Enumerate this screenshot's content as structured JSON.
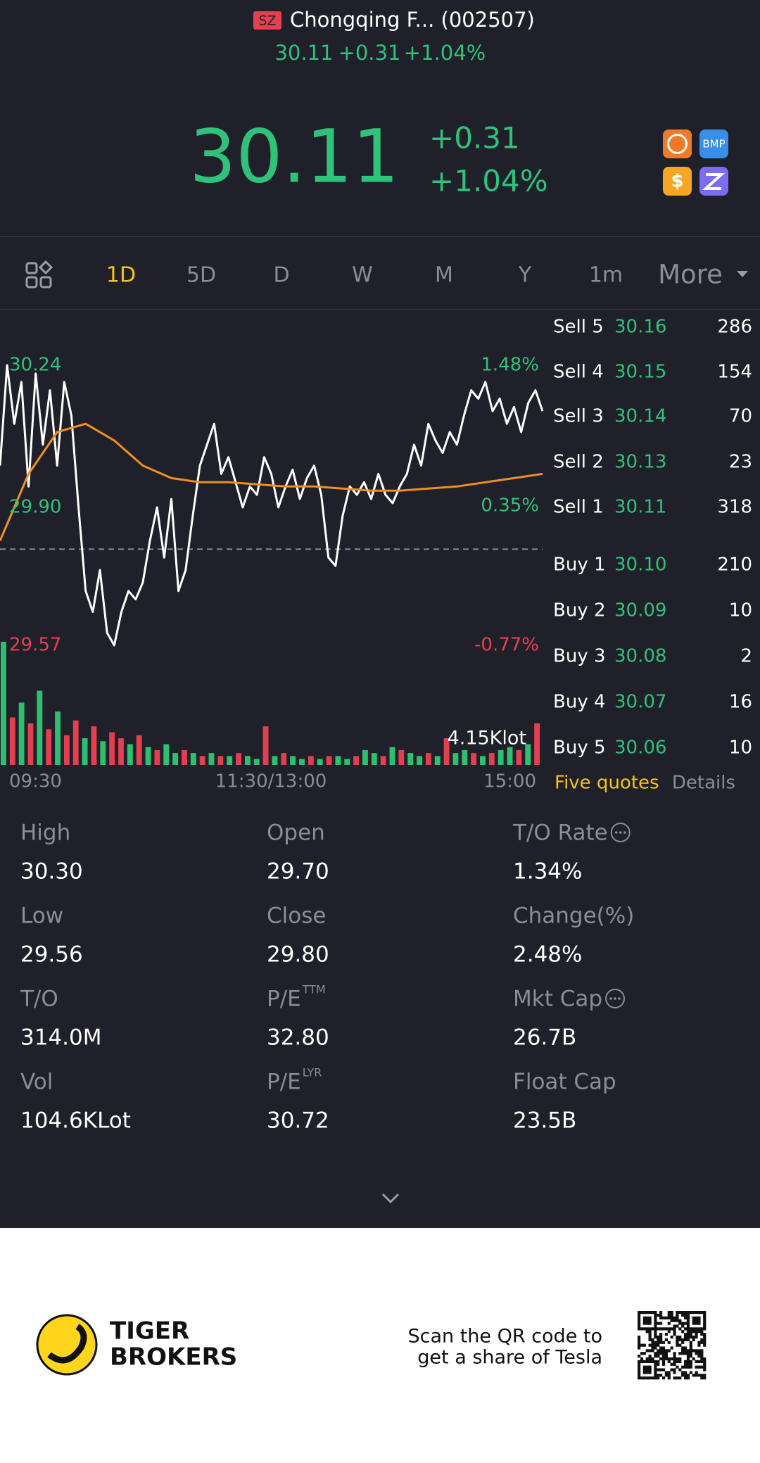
{
  "header": {
    "exchange": "SZ",
    "name": "Chongqing F... (002507)",
    "price": "30.11",
    "change": "+0.31",
    "change_pct": "+1.04%"
  },
  "quote": {
    "price": "30.11",
    "change": "+0.31",
    "change_pct": "+1.04%",
    "icons": [
      "BMP",
      "$"
    ]
  },
  "tabs": [
    "1D",
    "5D",
    "D",
    "W",
    "M",
    "Y",
    "1m",
    "More"
  ],
  "chart_data": {
    "type": "line",
    "ylim": [
      29.57,
      30.24
    ],
    "yticks": [
      30.24,
      {
        "value": 29.9,
        "label": "29.90"
      },
      29.57
    ],
    "y2lim": [
      -0.77,
      1.48
    ],
    "y2ticks": [
      {
        "value": 1.48,
        "label": "1.48%"
      },
      {
        "value": 0.35,
        "label": "0.35%"
      },
      {
        "value": -0.77,
        "label": "-0.77%"
      }
    ],
    "reference_line": 29.8,
    "x_labels": [
      "09:30",
      "11:30/13:00",
      "15:00"
    ],
    "series": [
      {
        "color": "#ffffff",
        "values": [
          30.0,
          30.24,
          30.1,
          30.2,
          29.95,
          30.22,
          30.05,
          30.18,
          30.0,
          30.2,
          30.12,
          29.9,
          29.7,
          29.65,
          29.75,
          29.6,
          29.57,
          29.65,
          29.7,
          29.68,
          29.72,
          29.82,
          29.9,
          29.78,
          29.92,
          29.7,
          29.75,
          29.88,
          30.0,
          30.05,
          30.1,
          29.98,
          30.02,
          29.96,
          29.9,
          29.95,
          29.93,
          30.02,
          29.98,
          29.9,
          29.95,
          29.99,
          29.92,
          29.97,
          30.0,
          29.93,
          29.78,
          29.76,
          29.88,
          29.95,
          29.93,
          29.96,
          29.92,
          29.98,
          29.93,
          29.91,
          29.95,
          29.98,
          30.05,
          30.0,
          30.1,
          30.06,
          30.03,
          30.08,
          30.05,
          30.12,
          30.18,
          30.16,
          30.2,
          30.13,
          30.16,
          30.1,
          30.14,
          30.08,
          30.15,
          30.18,
          30.13
        ]
      },
      {
        "color": "#f0901e",
        "values": [
          29.82,
          29.98,
          30.08,
          30.1,
          30.06,
          30.0,
          29.97,
          29.96,
          29.96,
          29.955,
          29.95,
          29.95,
          29.945,
          29.94,
          29.94,
          29.945,
          29.95,
          29.96,
          29.97,
          29.98
        ]
      }
    ],
    "volume": {
      "ticks": [
        {
          "value": 4.15,
          "label": "4.15Klot"
        }
      ],
      "up_color": "#2fbf71",
      "down_color": "#e0404f",
      "values": [
        4.15,
        1.6,
        2.1,
        1.4,
        2.5,
        1.2,
        1.8,
        1.0,
        1.5,
        0.9,
        1.3,
        0.8,
        1.1,
        0.9,
        0.7,
        1.0,
        0.6,
        0.5,
        0.7,
        0.4,
        0.5,
        0.4,
        0.3,
        0.4,
        0.3,
        0.3,
        0.4,
        0.3,
        0.2,
        1.3,
        0.3,
        0.4,
        0.3,
        0.2,
        0.3,
        0.2,
        0.3,
        0.3,
        0.2,
        0.3,
        0.5,
        0.4,
        0.3,
        0.6,
        0.5,
        0.4,
        0.3,
        0.4,
        0.3,
        0.9,
        0.4,
        0.5,
        0.4,
        0.3,
        0.4,
        0.5,
        0.6,
        0.5,
        0.7,
        1.4
      ],
      "up": [
        true,
        false,
        true,
        false,
        true,
        false,
        true,
        false,
        false,
        true,
        false,
        true,
        false,
        false,
        true,
        false,
        true,
        false,
        true,
        true,
        false,
        true,
        false,
        true,
        false,
        true,
        false,
        true,
        true,
        false,
        true,
        false,
        true,
        true,
        false,
        true,
        false,
        true,
        true,
        false,
        true,
        true,
        false,
        true,
        false,
        true,
        true,
        false,
        true,
        false,
        true,
        true,
        false,
        true,
        false,
        true,
        true,
        false,
        true,
        false
      ]
    }
  },
  "order_book": {
    "asks": [
      {
        "label": "Sell 5",
        "price": "30.16",
        "qty": "286"
      },
      {
        "label": "Sell 4",
        "price": "30.15",
        "qty": "154"
      },
      {
        "label": "Sell 3",
        "price": "30.14",
        "qty": "70"
      },
      {
        "label": "Sell 2",
        "price": "30.13",
        "qty": "23"
      },
      {
        "label": "Sell 1",
        "price": "30.11",
        "qty": "318"
      }
    ],
    "bids": [
      {
        "label": "Buy 1",
        "price": "30.10",
        "qty": "210"
      },
      {
        "label": "Buy 2",
        "price": "30.09",
        "qty": "10"
      },
      {
        "label": "Buy 3",
        "price": "30.08",
        "qty": "2"
      },
      {
        "label": "Buy 4",
        "price": "30.07",
        "qty": "16"
      },
      {
        "label": "Buy 5",
        "price": "30.06",
        "qty": "10"
      }
    ],
    "tabs": [
      "Five quotes",
      "Details"
    ]
  },
  "stats": [
    {
      "label": "High",
      "value": "30.30"
    },
    {
      "label": "Open",
      "value": "29.70"
    },
    {
      "label": "T/O Rate",
      "value": "1.34%",
      "info": true
    },
    {
      "label": "Low",
      "value": "29.56"
    },
    {
      "label": "Close",
      "value": "29.80"
    },
    {
      "label": "Change(%)",
      "value": "2.48%"
    },
    {
      "label": "T/O",
      "value": "314.0M"
    },
    {
      "label": "P/E",
      "sup": "TTM",
      "value": "32.80"
    },
    {
      "label": "Mkt Cap",
      "value": "26.7B",
      "info": true
    },
    {
      "label": "Vol",
      "value": "104.6KLot"
    },
    {
      "label": "P/E",
      "sup": "LYR",
      "value": "30.72"
    },
    {
      "label": "Float Cap",
      "value": "23.5B"
    }
  ],
  "footer": {
    "brand": [
      "TIGER",
      "BROKERS"
    ],
    "cta": [
      "Scan the QR code to",
      "get a share of Tesla"
    ]
  }
}
